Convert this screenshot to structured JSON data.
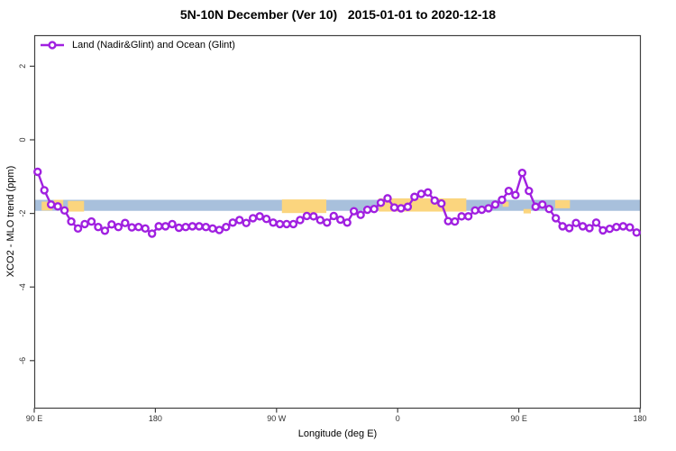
{
  "title": "5N-10N December (Ver 10)   2015-01-01 to 2020-12-18",
  "legend": {
    "label": "Land (Nadir&Glint) and Ocean (Glint)"
  },
  "axes": {
    "xlabel": "Longitude (deg E)",
    "ylabel": "XCO2 - MLO trend (ppm)",
    "x_ticks": [
      {
        "value": 90,
        "label": "90 E"
      },
      {
        "value": 180,
        "label": "180"
      },
      {
        "value": 270,
        "label": "90 W"
      },
      {
        "value": 360,
        "label": "0"
      },
      {
        "value": 450,
        "label": "90 E"
      },
      {
        "value": 540,
        "label": "180"
      }
    ],
    "y_ticks": [
      {
        "value": 2,
        "label": "2"
      },
      {
        "value": 0,
        "label": "0"
      },
      {
        "value": -2,
        "label": "-2"
      },
      {
        "value": -4,
        "label": "-4"
      },
      {
        "value": -6,
        "label": "-6"
      }
    ]
  },
  "colors": {
    "series_purple": "#A020E0",
    "band_blue": "#A8C0DC",
    "segment_orange": "#FBD57E",
    "axis": "#404040",
    "tick_text": "#333333"
  },
  "chart_data": {
    "type": "line",
    "title": "5N-10N December (Ver 10)   2015-01-01 to 2020-12-18",
    "xlabel": "Longitude (deg E)",
    "ylabel": "XCO2 - MLO trend (ppm)",
    "xlim": [
      90,
      540
    ],
    "ylim": [
      -7.3,
      2.85
    ],
    "grid": false,
    "legend_position": "top-left",
    "x": [
      92.5,
      97.5,
      102.5,
      107.5,
      112.5,
      117.5,
      122.5,
      127.5,
      132.5,
      137.5,
      142.5,
      147.5,
      152.5,
      157.5,
      162.5,
      167.5,
      172.5,
      177.5,
      182.5,
      187.5,
      192.5,
      197.5,
      202.5,
      207.5,
      212.5,
      217.5,
      222.5,
      227.5,
      232.5,
      237.5,
      242.5,
      247.5,
      252.5,
      257.5,
      262.5,
      267.5,
      272.5,
      277.5,
      282.5,
      287.5,
      292.5,
      297.5,
      302.5,
      307.5,
      312.5,
      317.5,
      322.5,
      327.5,
      332.5,
      337.5,
      342.5,
      347.5,
      352.5,
      357.5,
      362.5,
      367.5,
      372.5,
      377.5,
      382.5,
      387.5,
      392.5,
      397.5,
      402.5,
      407.5,
      412.5,
      417.5,
      422.5,
      427.5,
      432.5,
      437.5,
      442.5,
      447.5,
      452.5,
      457.5,
      462.5,
      467.5,
      472.5,
      477.5,
      482.5,
      487.5,
      492.5,
      497.5,
      502.5,
      507.5,
      512.5,
      517.5,
      522.5,
      527.5,
      532.5,
      537.5
    ],
    "series": [
      {
        "name": "Land (Nadir&Glint) and Ocean (Glint)",
        "color": "#A020E0",
        "marker": "open-circle",
        "values": [
          -0.87,
          -1.37,
          -1.76,
          -1.81,
          -1.92,
          -2.22,
          -2.41,
          -2.29,
          -2.22,
          -2.37,
          -2.47,
          -2.3,
          -2.37,
          -2.26,
          -2.38,
          -2.37,
          -2.41,
          -2.55,
          -2.35,
          -2.35,
          -2.29,
          -2.39,
          -2.37,
          -2.35,
          -2.35,
          -2.37,
          -2.41,
          -2.45,
          -2.37,
          -2.25,
          -2.18,
          -2.26,
          -2.13,
          -2.08,
          -2.15,
          -2.25,
          -2.29,
          -2.29,
          -2.29,
          -2.18,
          -2.07,
          -2.08,
          -2.18,
          -2.25,
          -2.07,
          -2.17,
          -2.25,
          -1.94,
          -2.04,
          -1.9,
          -1.88,
          -1.71,
          -1.59,
          -1.84,
          -1.86,
          -1.82,
          -1.55,
          -1.47,
          -1.43,
          -1.65,
          -1.73,
          -2.21,
          -2.22,
          -2.08,
          -2.08,
          -1.92,
          -1.9,
          -1.86,
          -1.76,
          -1.63,
          -1.39,
          -1.5,
          -0.9,
          -1.39,
          -1.82,
          -1.76,
          -1.88,
          -2.13,
          -2.35,
          -2.4,
          -2.26,
          -2.35,
          -2.4,
          -2.25,
          -2.46,
          -2.42,
          -2.37,
          -2.35,
          -2.38,
          -2.52
        ]
      }
    ],
    "reference_band": {
      "color": "#A8C0DC",
      "v_top": -1.63,
      "v_bottom": -1.93
    },
    "orange_segments": [
      {
        "x1": 95.5,
        "x2": 103.5,
        "v_top": -1.68,
        "v_bottom": -1.92
      },
      {
        "x1": 104.5,
        "x2": 111.5,
        "v_top": -1.63,
        "v_bottom": -1.85
      },
      {
        "x1": 115.0,
        "x2": 127.0,
        "v_top": -1.66,
        "v_bottom": -1.95
      },
      {
        "x1": 274.0,
        "x2": 307.0,
        "v_top": -1.62,
        "v_bottom": -1.99
      },
      {
        "x1": 346.0,
        "x2": 411.0,
        "v_top": -1.59,
        "v_bottom": -1.95
      },
      {
        "x1": 438.0,
        "x2": 442.5,
        "v_top": -1.68,
        "v_bottom": -1.82
      },
      {
        "x1": 453.5,
        "x2": 459.0,
        "v_top": -1.88,
        "v_bottom": -2.0
      },
      {
        "x1": 477.0,
        "x2": 488.0,
        "v_top": -1.64,
        "v_bottom": -1.86
      }
    ]
  }
}
